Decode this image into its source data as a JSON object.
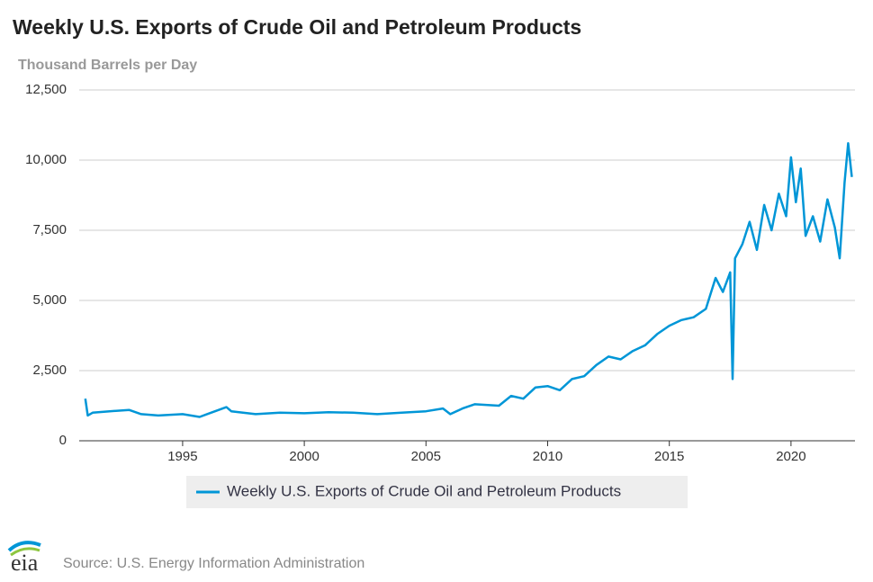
{
  "chart_data": {
    "type": "line",
    "title": "Weekly U.S. Exports of Crude Oil and Petroleum Products",
    "subtitle": "Thousand Barrels per Day",
    "source": "Source: U.S. Energy Information Administration",
    "logo": "eia",
    "x": [
      1991.0,
      1991.1,
      1991.3,
      1992.0,
      1992.8,
      1993.3,
      1994.0,
      1995.0,
      1995.7,
      1996.0,
      1996.8,
      1997.0,
      1998.0,
      1999.0,
      2000.0,
      2001.0,
      2002.0,
      2003.0,
      2004.0,
      2005.0,
      2005.7,
      2006.0,
      2006.5,
      2007.0,
      2008.0,
      2008.5,
      2009.0,
      2009.5,
      2010.0,
      2010.5,
      2011.0,
      2011.5,
      2012.0,
      2012.5,
      2013.0,
      2013.5,
      2014.0,
      2014.5,
      2015.0,
      2015.5,
      2016.0,
      2016.5,
      2016.9,
      2017.2,
      2017.5,
      2017.6,
      2017.7,
      2018.0,
      2018.3,
      2018.6,
      2018.9,
      2019.2,
      2019.5,
      2019.8,
      2020.0,
      2020.2,
      2020.4,
      2020.6,
      2020.9,
      2021.2,
      2021.5,
      2021.8,
      2022.0,
      2022.2,
      2022.35,
      2022.5
    ],
    "series": [
      {
        "name": "Weekly U.S. Exports of Crude Oil and Petroleum Products",
        "color": "#0096d7",
        "values": [
          1500,
          900,
          1000,
          1050,
          1100,
          950,
          900,
          950,
          850,
          950,
          1200,
          1050,
          950,
          1000,
          980,
          1020,
          1000,
          950,
          1000,
          1050,
          1150,
          950,
          1150,
          1300,
          1250,
          1600,
          1500,
          1900,
          1950,
          1800,
          2200,
          2300,
          2700,
          3000,
          2900,
          3200,
          3400,
          3800,
          4100,
          4300,
          4400,
          4700,
          5800,
          5300,
          6000,
          2200,
          6500,
          7000,
          7800,
          6800,
          8400,
          7500,
          8800,
          8000,
          10100,
          8500,
          9700,
          7300,
          8000,
          7100,
          8600,
          7600,
          6500,
          9200,
          10600,
          9400
        ]
      }
    ],
    "xlim": [
      1990.75,
      2022.63
    ],
    "xticks": [
      1995,
      2000,
      2005,
      2010,
      2015,
      2020
    ],
    "ylim": [
      0,
      12500
    ],
    "yticks": [
      0,
      {
        "value": 2500,
        "label": "2,500"
      },
      {
        "value": 5000,
        "label": "5,000"
      },
      {
        "value": 7500,
        "label": "7,500"
      },
      {
        "value": 10000,
        "label": "10,000"
      },
      {
        "value": 12500,
        "label": "12,500"
      }
    ],
    "grid": true
  }
}
